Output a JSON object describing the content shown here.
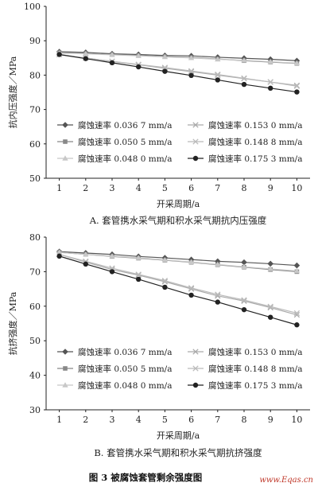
{
  "figure": {
    "caption": "图 3    被腐蚀套管剩余强度图",
    "watermark": "www.Eqas.cn"
  },
  "chart_data": [
    {
      "id": "A",
      "type": "line",
      "caption": "A. 套管携水采气期和积水采气期抗内压强度",
      "ylabel": "抗内压强度／MPa",
      "xlabel": "开采周期/a",
      "x": [
        1,
        2,
        3,
        4,
        5,
        6,
        7,
        8,
        9,
        10
      ],
      "ylim": [
        50,
        100
      ],
      "yticks": [
        50,
        60,
        70,
        80,
        90,
        100
      ],
      "grid": false,
      "legend_position": "bottom",
      "series": [
        {
          "name": "腐蚀速率 0.036 7 mm/a",
          "color": "#555555",
          "marker": "diamond",
          "values": [
            86.8,
            86.6,
            86.2,
            86.0,
            85.7,
            85.6,
            85.2,
            84.9,
            84.6,
            84.2
          ]
        },
        {
          "name": "腐蚀速率 0.050 5 mm/a",
          "color": "#888888",
          "marker": "square",
          "values": [
            86.5,
            86.3,
            86.0,
            85.7,
            85.4,
            85.1,
            84.7,
            84.2,
            83.8,
            83.4
          ]
        },
        {
          "name": "腐蚀速率 0.048 0 mm/a",
          "color": "#c8c8c8",
          "marker": "triangle",
          "values": [
            86.4,
            86.2,
            85.9,
            85.6,
            85.3,
            85.0,
            84.6,
            84.3,
            83.9,
            83.5
          ]
        },
        {
          "name": "腐蚀速率 0.153 0 mm/a",
          "color": "#aaaaaa",
          "marker": "x",
          "values": [
            86.0,
            85.0,
            84.0,
            83.0,
            82.0,
            81.0,
            80.0,
            79.0,
            78.0,
            77.0
          ]
        },
        {
          "name": "腐蚀速率 0.148 8 mm/a",
          "color": "#bbbbbb",
          "marker": "x",
          "values": [
            86.0,
            85.0,
            84.0,
            83.1,
            82.2,
            81.2,
            80.2,
            79.1,
            78.0,
            76.8
          ]
        },
        {
          "name": "腐蚀速率 0.175 3 mm/a",
          "color": "#222222",
          "marker": "circle",
          "values": [
            86.0,
            84.8,
            83.6,
            82.4,
            81.1,
            79.9,
            78.6,
            77.3,
            76.2,
            75.1
          ]
        }
      ]
    },
    {
      "id": "B",
      "type": "line",
      "caption": "B. 套管携水采气期和积水采气期抗挤强度",
      "ylabel": "抗挤强度／MPa",
      "xlabel": "开采周期/a",
      "x": [
        1,
        2,
        3,
        4,
        5,
        6,
        7,
        8,
        9,
        10
      ],
      "ylim": [
        30,
        80
      ],
      "yticks": [
        30,
        40,
        50,
        60,
        70,
        80
      ],
      "grid": false,
      "legend_position": "bottom",
      "series": [
        {
          "name": "腐蚀速率 0.036 7 mm/a",
          "color": "#555555",
          "marker": "diamond",
          "values": [
            75.8,
            75.4,
            75.0,
            74.4,
            74.0,
            73.5,
            73.0,
            72.7,
            72.3,
            71.8
          ]
        },
        {
          "name": "腐蚀速率 0.050 5 mm/a",
          "color": "#888888",
          "marker": "square",
          "values": [
            75.6,
            75.0,
            74.4,
            73.9,
            73.3,
            72.7,
            72.0,
            71.3,
            70.6,
            70.0
          ]
        },
        {
          "name": "腐蚀速率 0.048 0 mm/a",
          "color": "#c8c8c8",
          "marker": "triangle",
          "values": [
            75.6,
            75.0,
            74.5,
            74.0,
            73.4,
            72.8,
            72.1,
            71.4,
            70.8,
            70.2
          ]
        },
        {
          "name": "腐蚀速率 0.153 0 mm/a",
          "color": "#aaaaaa",
          "marker": "x",
          "values": [
            75.0,
            72.8,
            70.6,
            69.0,
            67.1,
            65.0,
            63.0,
            61.5,
            59.6,
            57.5
          ]
        },
        {
          "name": "腐蚀速率 0.148 8 mm/a",
          "color": "#bbbbbb",
          "marker": "x",
          "values": [
            75.0,
            73.0,
            71.0,
            69.2,
            67.4,
            65.3,
            63.4,
            61.8,
            59.9,
            58.0
          ]
        },
        {
          "name": "腐蚀速率 0.175 3 mm/a",
          "color": "#222222",
          "marker": "circle",
          "values": [
            74.5,
            72.2,
            70.0,
            67.8,
            65.5,
            63.2,
            61.2,
            59.0,
            56.8,
            54.6
          ]
        }
      ]
    }
  ]
}
